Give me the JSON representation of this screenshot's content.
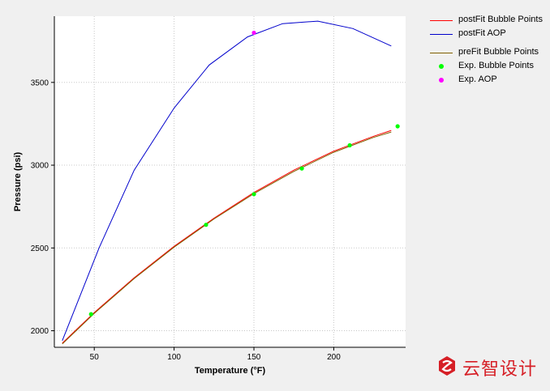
{
  "chart_data": {
    "type": "line",
    "xlabel": "Temperature (°F)",
    "ylabel": "Pressure (psi)",
    "xlim": [
      25,
      245
    ],
    "ylim": [
      1900,
      3900
    ],
    "xticks": [
      50,
      100,
      150,
      200
    ],
    "yticks": [
      2000,
      2500,
      3000,
      3500
    ],
    "grid": true,
    "legend_position": "right",
    "series": [
      {
        "name": "postFit Bubble Points",
        "kind": "line",
        "color": "#ff0000",
        "x": [
          30,
          50,
          75,
          100,
          125,
          150,
          175,
          200,
          225,
          236
        ],
        "y": [
          1925,
          2110,
          2320,
          2510,
          2680,
          2835,
          2970,
          3085,
          3175,
          3210
        ]
      },
      {
        "name": "postFit AOP",
        "kind": "line",
        "color": "#0000cc",
        "x": [
          30,
          53,
          75,
          100,
          122,
          146,
          168,
          190,
          212,
          236
        ],
        "y": [
          1940,
          2500,
          2970,
          3345,
          3605,
          3775,
          3855,
          3870,
          3825,
          3720
        ]
      },
      {
        "name": "preFit Bubble Points",
        "kind": "line",
        "color": "#806000",
        "x": [
          30,
          50,
          75,
          100,
          125,
          150,
          175,
          200,
          225,
          236
        ],
        "y": [
          1920,
          2105,
          2315,
          2505,
          2675,
          2828,
          2962,
          3078,
          3168,
          3200
        ]
      },
      {
        "name": "Exp. Bubble Points",
        "kind": "scatter",
        "color": "#00ff00",
        "x": [
          48,
          120,
          150,
          180,
          210,
          240
        ],
        "y": [
          2100,
          2640,
          2825,
          2980,
          3120,
          3235
        ]
      },
      {
        "name": "Exp. AOP",
        "kind": "scatter",
        "color": "#ff00ff",
        "x": [
          150
        ],
        "y": [
          3800
        ]
      }
    ]
  },
  "legend": {
    "items": [
      {
        "label": "postFit Bubble Points",
        "color": "#ff0000",
        "kind": "line"
      },
      {
        "label": "postFit AOP",
        "color": "#0000cc",
        "kind": "line"
      },
      {
        "label": "preFit Bubble Points",
        "color": "#806000",
        "kind": "line"
      },
      {
        "label": "Exp. Bubble Points",
        "color": "#00ff00",
        "kind": "dot"
      },
      {
        "label": "Exp. AOP",
        "color": "#ff00ff",
        "kind": "dot"
      }
    ]
  },
  "watermark": {
    "text": "云智设计",
    "color": "#d61f26"
  }
}
